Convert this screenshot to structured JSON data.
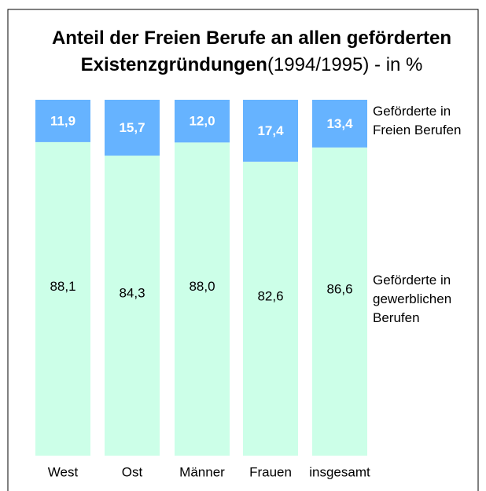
{
  "chart_data": {
    "type": "stacked_bar",
    "title": "Anteil der Freien Berufe an allen geförderten Existenzgründungen",
    "subtitle": "(1994/1995) - in %",
    "categories": [
      "West",
      "Ost",
      "Männer",
      "Frauen",
      "insgesamt"
    ],
    "ylim": [
      0,
      100
    ],
    "series": [
      {
        "name": "Geförderte in gewerblichen Berufen",
        "color": "#ccffe8",
        "values": [
          88.1,
          84.3,
          88.0,
          82.6,
          86.6
        ],
        "value_labels": [
          "88,1",
          "84,3",
          "88,0",
          "82,6",
          "86,6"
        ]
      },
      {
        "name": "Geförderte in Freien Berufen",
        "color": "#66b3ff",
        "values": [
          11.9,
          15.7,
          12.0,
          17.4,
          13.4
        ],
        "value_labels": [
          "11,9",
          "15,7",
          "12,0",
          "17,4",
          "13,4"
        ]
      }
    ]
  }
}
